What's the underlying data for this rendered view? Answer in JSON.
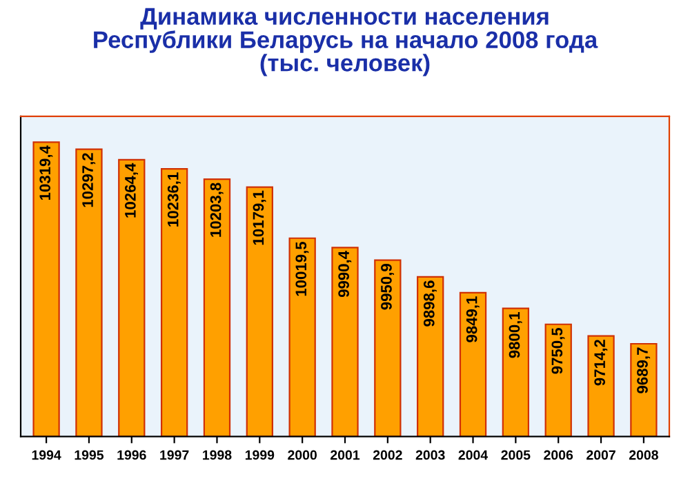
{
  "chart_data": {
    "type": "bar",
    "title": "Динамика численности населения\nРеспублики Беларусь на начало 2008 года\n(тыс. человек)",
    "categories": [
      "1994",
      "1995",
      "1996",
      "1997",
      "1998",
      "1999",
      "2000",
      "2001",
      "2002",
      "2003",
      "2004",
      "2005",
      "2006",
      "2007",
      "2008"
    ],
    "values": [
      10319.4,
      10297.2,
      10264.4,
      10236.1,
      10203.8,
      10179.1,
      10019.5,
      9990.4,
      9950.9,
      9898.6,
      9849.1,
      9800.1,
      9750.5,
      9714.2,
      9689.7
    ],
    "value_labels": [
      "10319,4",
      "10297,2",
      "10264,4",
      "10236,1",
      "10203,8",
      "10179,1",
      "10019,5",
      "9990,4",
      "9950,9",
      "9898,6",
      "9849,1",
      "9800,1",
      "9750,5",
      "9714,2",
      "9689,7"
    ],
    "color": "#ffa000",
    "ylim": [
      9400,
      10400
    ],
    "tick_labels": "x",
    "grid": false
  }
}
